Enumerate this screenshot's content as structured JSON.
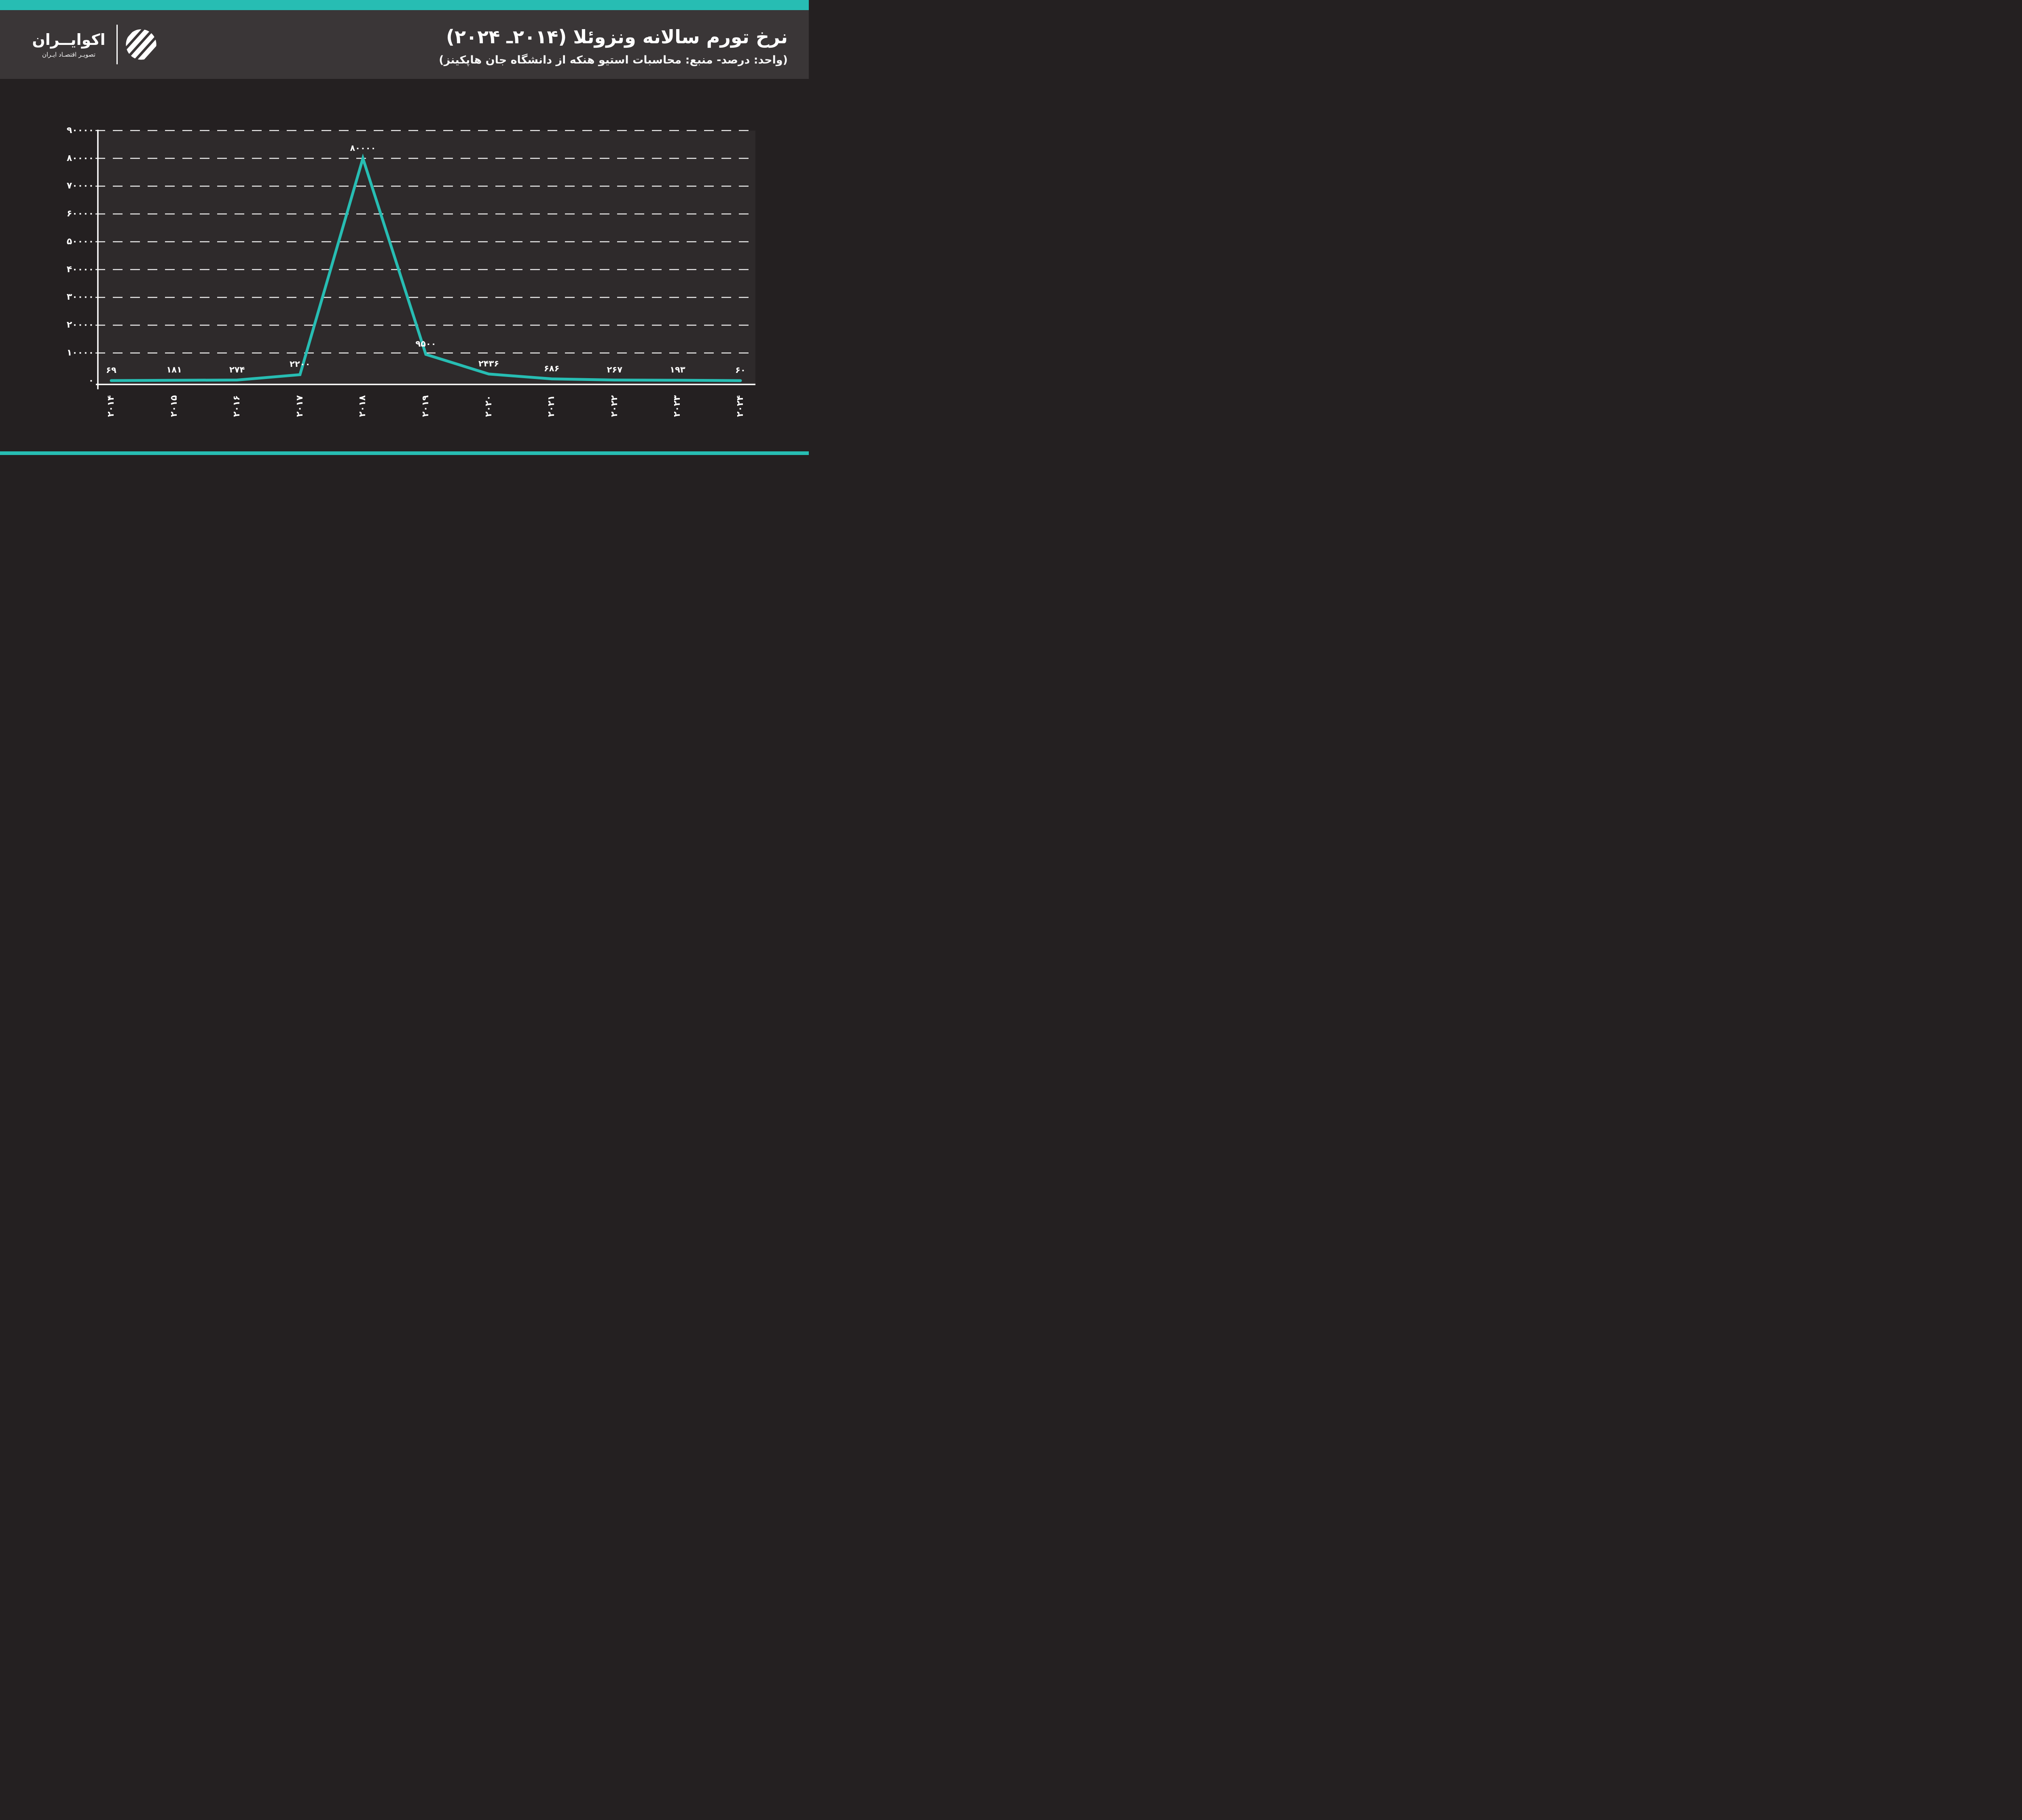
{
  "colors": {
    "accent_teal": "#27bdb3",
    "header_bg": "#3a3637",
    "page_bg": "#242021",
    "plot_bg": "#2e2a2b",
    "text": "#ffffff",
    "line_color": "#27bdb3"
  },
  "header": {
    "title": "نرخ تورم سالانه ونزوئلا (۲۰۱۴ـ ۲۰۲۴)",
    "subtitle": "(واحد: درصد- منبع: محاسبات استیو هنکه از دانشگاه جان هاپکینز)",
    "logo": {
      "brand_name": "اکوایــران",
      "tagline": "تصویـر اقتصـاد ایـران",
      "mark": "ecoiran-striped-circle-logo"
    }
  },
  "chart_data": {
    "type": "line",
    "title": "نرخ تورم سالانه ونزوئلا (۲۰۱۴ـ ۲۰۲۴)",
    "note": "(واحد: درصد- منبع: محاسبات استیو هنکه از دانشگاه جان هاپکینز)",
    "x": [
      2014,
      2015,
      2016,
      2017,
      2018,
      2019,
      2020,
      2021,
      2022,
      2023,
      2024
    ],
    "x_tick_labels": [
      "۲۰۱۴",
      "۲۰۱۵",
      "۲۰۱۶",
      "۲۰۱۷",
      "۲۰۱۸",
      "۲۰۱۹",
      "۲۰۲۰",
      "۲۰۲۱",
      "۲۰۲۲",
      "۲۰۲۳",
      "۲۰۲۴"
    ],
    "values": [
      69,
      181,
      274,
      2200,
      80000,
      9500,
      2436,
      686,
      267,
      193,
      60
    ],
    "value_labels": [
      "۶۹",
      "۱۸۱",
      "۲۷۴",
      "۲۲۰۰",
      "۸۰۰۰۰",
      "۹۵۰۰",
      "۲۴۳۶",
      "۶۸۶",
      "۲۶۷",
      "۱۹۳",
      "۶۰"
    ],
    "y_ticks": [
      0,
      10000,
      20000,
      30000,
      40000,
      50000,
      60000,
      70000,
      80000,
      90000
    ],
    "y_tick_labels": [
      "۰",
      "۱۰۰۰۰",
      "۲۰۰۰۰",
      "۳۰۰۰۰",
      "۴۰۰۰۰",
      "۵۰۰۰۰",
      "۶۰۰۰۰",
      "۷۰۰۰۰",
      "۸۰۰۰۰",
      "۹۰۰۰۰"
    ],
    "ylabel": "",
    "xlabel": "",
    "ylim": [
      0,
      90000
    ],
    "grid": "horizontal-dashed",
    "legend": "none",
    "line_color": "#27bdb3"
  }
}
